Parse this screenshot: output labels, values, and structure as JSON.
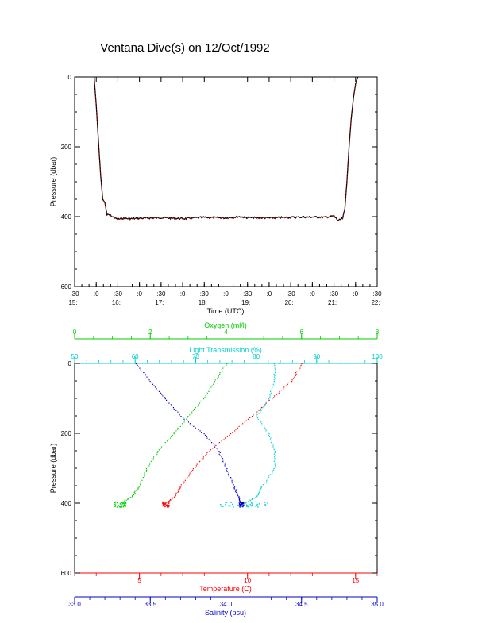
{
  "title": "Ventana Dive(s) on 12/Oct/1992",
  "colors": {
    "temperature": "#ff0000",
    "salinity": "#0000cc",
    "oxygen": "#00cc00",
    "transmission": "#00cccc",
    "trace_dark": "#000000",
    "trace_red": "#cc0000"
  },
  "chart_data": [
    {
      "type": "line",
      "name": "pressure-vs-time",
      "xlabel": "Time (UTC)",
      "ylabel": "Pressure (dbar)",
      "xlim": [
        15.5,
        22.5
      ],
      "ylim": [
        600,
        0
      ],
      "y_ticks": [
        "0",
        "200",
        "400",
        "600"
      ],
      "x_ticks_minutes": [
        ":30",
        ":0",
        ":30",
        ":0",
        ":30",
        ":0",
        ":30",
        ":0",
        ":30",
        ":0",
        ":30",
        ":0",
        ":30",
        ":0",
        ":30"
      ],
      "x_ticks_hours": [
        "15:",
        "16:",
        "17:",
        "18:",
        "19:",
        "20:",
        "21:",
        "22:"
      ],
      "series": [
        {
          "x": [
            15.95,
            16.0,
            16.05,
            16.1,
            16.15,
            16.2,
            16.25,
            16.3,
            16.4,
            16.5,
            16.6,
            16.8,
            17.0,
            17.5,
            18.0,
            18.5,
            19.0,
            19.3,
            19.5,
            20.0,
            20.5,
            21.0,
            21.3,
            21.5,
            21.6,
            21.7,
            21.75,
            21.8,
            21.85,
            21.9,
            21.95,
            22.0,
            22.05
          ],
          "y": [
            0,
            80,
            180,
            280,
            350,
            360,
            395,
            395,
            402,
            408,
            405,
            406,
            405,
            403,
            406,
            402,
            404,
            400,
            403,
            404,
            402,
            401,
            402,
            398,
            412,
            405,
            380,
            300,
            200,
            120,
            60,
            20,
            0
          ]
        }
      ]
    },
    {
      "type": "scatter",
      "name": "profiles",
      "ylabel": "Pressure (dbar)",
      "ylim": [
        600,
        0
      ],
      "y_ticks": [
        "0",
        "200",
        "400",
        "600"
      ],
      "axes": {
        "oxygen": {
          "label": "Oxygen (ml/l)",
          "lim": [
            0,
            8
          ],
          "ticks": [
            "0",
            "2",
            "4",
            "6",
            "8"
          ]
        },
        "transmission": {
          "label": "Light Transmission (%)",
          "lim": [
            50,
            100
          ],
          "ticks": [
            "50",
            "60",
            "70",
            "80",
            "90",
            "100"
          ]
        },
        "temperature": {
          "label": "Temperature (C)",
          "lim": [
            2,
            16
          ],
          "ticks": [
            "5",
            "10",
            "15"
          ]
        },
        "salinity": {
          "label": "Salinity (psu)",
          "lim": [
            33.0,
            35.0
          ],
          "ticks": [
            "33.0",
            "33.5",
            "34.0",
            "34.5",
            "35.0"
          ]
        }
      },
      "series": [
        {
          "axis": "temperature",
          "pressure": [
            0,
            50,
            100,
            150,
            200,
            250,
            300,
            350,
            380,
            400
          ],
          "value": [
            12.5,
            12.0,
            11.1,
            10.2,
            9.2,
            8.2,
            7.5,
            6.9,
            6.6,
            6.2
          ]
        },
        {
          "axis": "salinity",
          "pressure": [
            0,
            50,
            100,
            150,
            200,
            250,
            300,
            350,
            380,
            400
          ],
          "value": [
            33.4,
            33.5,
            33.6,
            33.7,
            33.85,
            33.95,
            34.0,
            34.05,
            34.08,
            34.1
          ]
        },
        {
          "axis": "oxygen",
          "pressure": [
            0,
            50,
            100,
            150,
            200,
            250,
            300,
            350,
            380,
            400
          ],
          "value": [
            4.0,
            3.7,
            3.4,
            3.0,
            2.6,
            2.2,
            1.9,
            1.7,
            1.5,
            1.2
          ]
        },
        {
          "axis": "transmission",
          "pressure": [
            0,
            50,
            100,
            150,
            200,
            250,
            300,
            350,
            380,
            400
          ],
          "value": [
            83,
            83,
            82,
            80,
            82,
            83,
            83,
            81,
            80,
            78
          ]
        }
      ]
    }
  ]
}
